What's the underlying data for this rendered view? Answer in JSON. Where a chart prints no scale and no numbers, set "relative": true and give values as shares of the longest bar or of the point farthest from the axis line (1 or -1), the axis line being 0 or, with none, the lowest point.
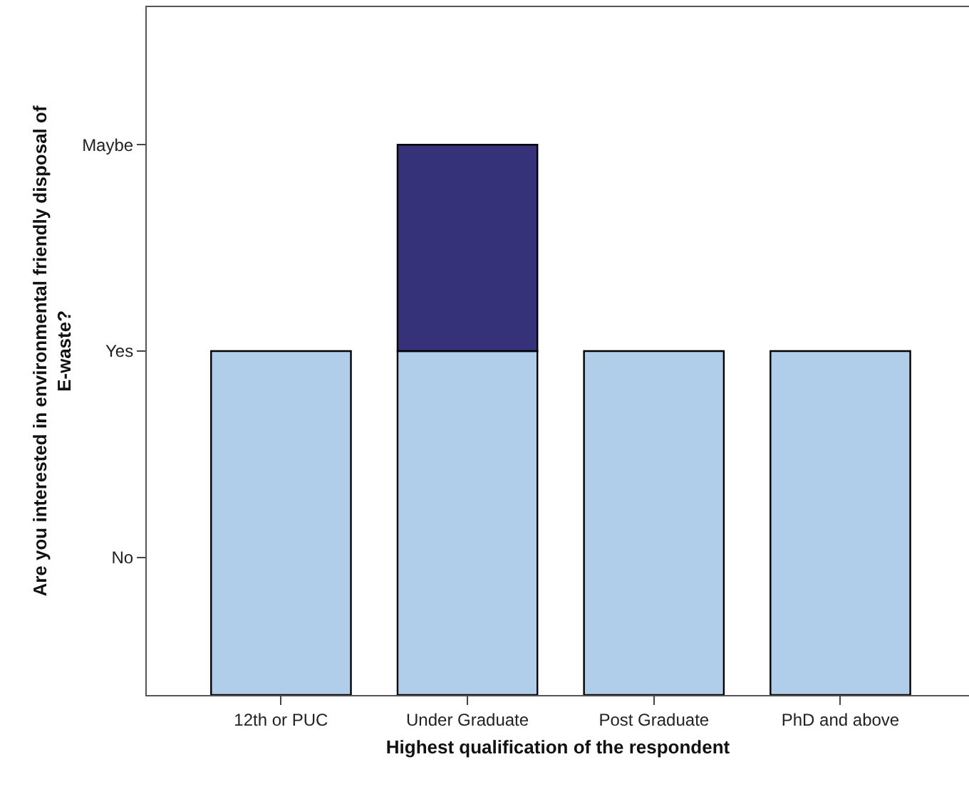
{
  "chart_data": {
    "type": "bar",
    "xlabel": "Highest qualification of the respondent",
    "ylabel": "Are you interested in environmental friendly disposal of E-waste?",
    "categories": [
      "12th or PUC",
      "Under Graduate",
      "Post Graduate",
      "PhD and above"
    ],
    "stacked": true,
    "relative": true,
    "series": [
      {
        "color": "#b0cde9",
        "values": [
          0.625,
          0.625,
          0.625,
          0.625
        ]
      },
      {
        "color": "#35327a",
        "values": [
          null,
          0.375,
          null,
          null
        ]
      }
    ],
    "annotations": [
      "No",
      "Yes",
      "Maybe"
    ]
  }
}
